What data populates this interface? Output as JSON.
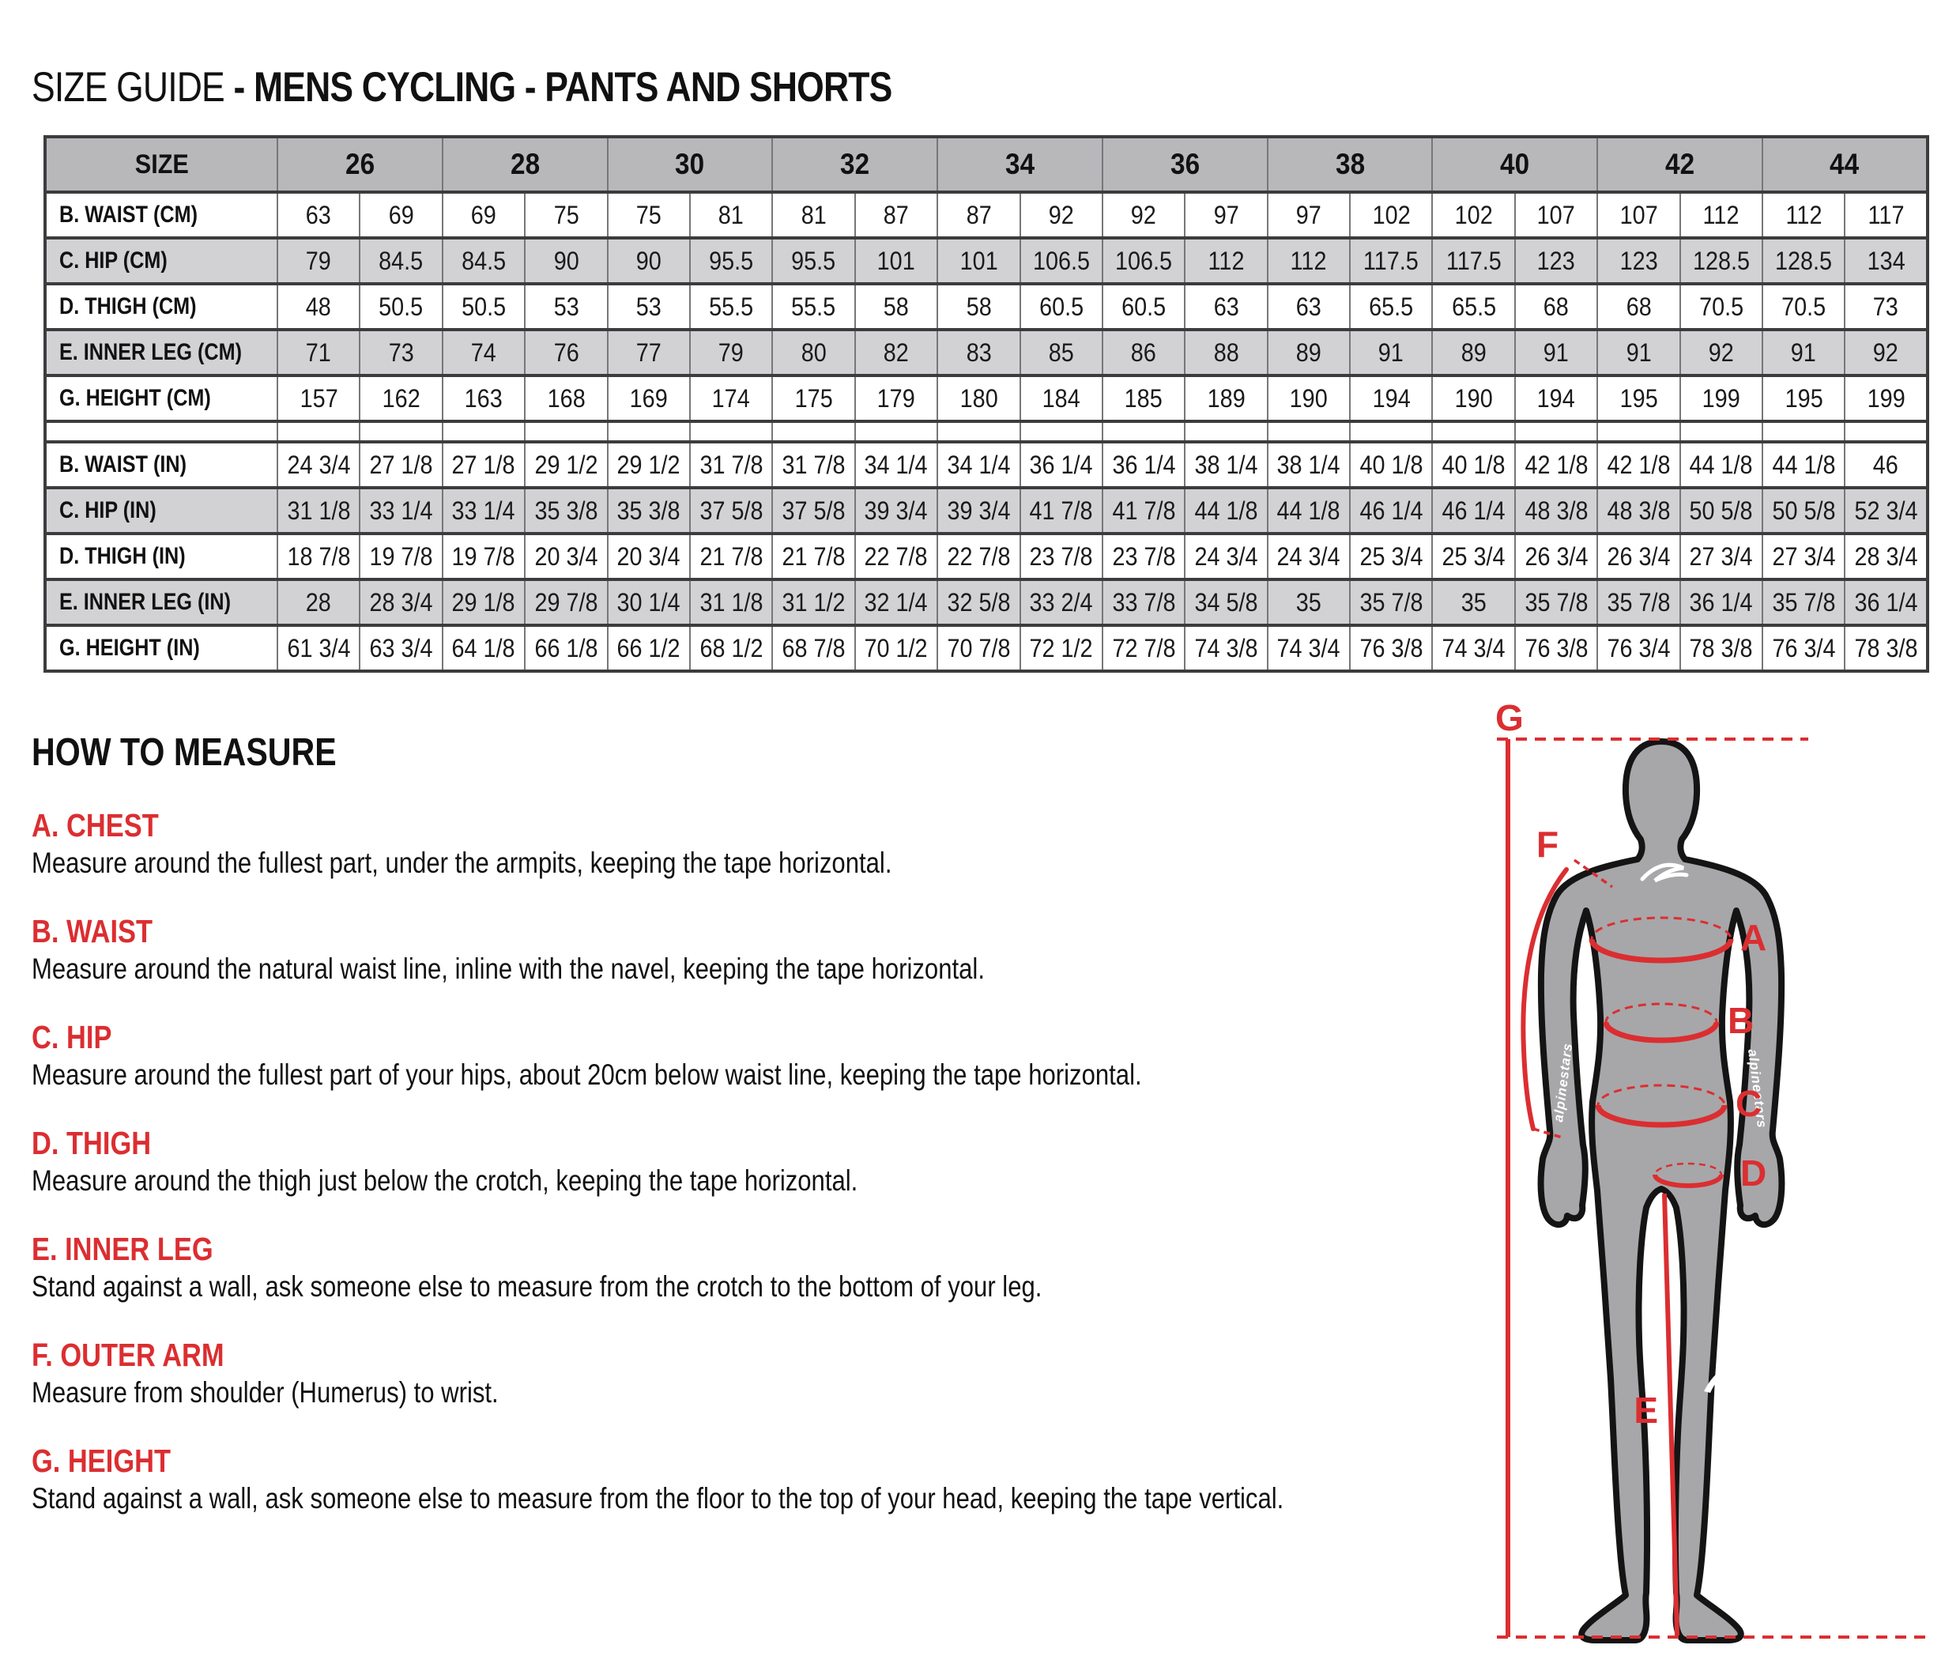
{
  "title": {
    "prefix": "SIZE GUIDE",
    "rest": "- MENS CYCLING - PANTS AND SHORTS"
  },
  "table": {
    "size_header_label": "SIZE",
    "sizes": [
      "26",
      "28",
      "30",
      "32",
      "34",
      "36",
      "38",
      "40",
      "42",
      "44"
    ],
    "cm_rows": [
      {
        "label": "B. WAIST (CM)",
        "values": [
          "63",
          "69",
          "69",
          "75",
          "75",
          "81",
          "81",
          "87",
          "87",
          "92",
          "92",
          "97",
          "97",
          "102",
          "102",
          "107",
          "107",
          "112",
          "112",
          "117"
        ]
      },
      {
        "label": "C. HIP (CM)",
        "values": [
          "79",
          "84.5",
          "84.5",
          "90",
          "90",
          "95.5",
          "95.5",
          "101",
          "101",
          "106.5",
          "106.5",
          "112",
          "112",
          "117.5",
          "117.5",
          "123",
          "123",
          "128.5",
          "128.5",
          "134"
        ]
      },
      {
        "label": "D. THIGH (CM)",
        "values": [
          "48",
          "50.5",
          "50.5",
          "53",
          "53",
          "55.5",
          "55.5",
          "58",
          "58",
          "60.5",
          "60.5",
          "63",
          "63",
          "65.5",
          "65.5",
          "68",
          "68",
          "70.5",
          "70.5",
          "73"
        ]
      },
      {
        "label": "E. INNER LEG (CM)",
        "values": [
          "71",
          "73",
          "74",
          "76",
          "77",
          "79",
          "80",
          "82",
          "83",
          "85",
          "86",
          "88",
          "89",
          "91",
          "89",
          "91",
          "91",
          "92",
          "91",
          "92"
        ]
      },
      {
        "label": "G. HEIGHT (CM)",
        "values": [
          "157",
          "162",
          "163",
          "168",
          "169",
          "174",
          "175",
          "179",
          "180",
          "184",
          "185",
          "189",
          "190",
          "194",
          "190",
          "194",
          "195",
          "199",
          "195",
          "199"
        ]
      }
    ],
    "in_rows": [
      {
        "label": "B. WAIST (IN)",
        "values": [
          "24 3/4",
          "27 1/8",
          "27 1/8",
          "29 1/2",
          "29 1/2",
          "31 7/8",
          "31 7/8",
          "34 1/4",
          "34 1/4",
          "36 1/4",
          "36 1/4",
          "38 1/4",
          "38 1/4",
          "40 1/8",
          "40 1/8",
          "42 1/8",
          "42 1/8",
          "44 1/8",
          "44 1/8",
          "46"
        ]
      },
      {
        "label": "C. HIP (IN)",
        "values": [
          "31 1/8",
          "33 1/4",
          "33 1/4",
          "35 3/8",
          "35 3/8",
          "37 5/8",
          "37 5/8",
          "39 3/4",
          "39 3/4",
          "41 7/8",
          "41 7/8",
          "44 1/8",
          "44 1/8",
          "46 1/4",
          "46 1/4",
          "48 3/8",
          "48 3/8",
          "50 5/8",
          "50 5/8",
          "52 3/4"
        ]
      },
      {
        "label": "D. THIGH (IN)",
        "values": [
          "18 7/8",
          "19 7/8",
          "19 7/8",
          "20 3/4",
          "20 3/4",
          "21 7/8",
          "21 7/8",
          "22 7/8",
          "22 7/8",
          "23 7/8",
          "23 7/8",
          "24 3/4",
          "24 3/4",
          "25 3/4",
          "25 3/4",
          "26 3/4",
          "26 3/4",
          "27 3/4",
          "27 3/4",
          "28 3/4"
        ]
      },
      {
        "label": "E. INNER LEG (IN)",
        "values": [
          "28",
          "28 3/4",
          "29 1/8",
          "29 7/8",
          "30 1/4",
          "31 1/8",
          "31 1/2",
          "32 1/4",
          "32 5/8",
          "33 2/4",
          "33 7/8",
          "34 5/8",
          "35",
          "35 7/8",
          "35",
          "35 7/8",
          "35 7/8",
          "36 1/4",
          "35 7/8",
          "36 1/4"
        ]
      },
      {
        "label": "G. HEIGHT (IN)",
        "values": [
          "61 3/4",
          "63 3/4",
          "64 1/8",
          "66 1/8",
          "66 1/2",
          "68 1/2",
          "68 7/8",
          "70 1/2",
          "70 7/8",
          "72 1/2",
          "72 7/8",
          "74 3/8",
          "74 3/4",
          "76 3/8",
          "74 3/4",
          "76 3/8",
          "76 3/4",
          "78 3/8",
          "76 3/4",
          "78 3/8"
        ]
      }
    ]
  },
  "how_to_measure": {
    "heading": "HOW TO MEASURE",
    "sections": [
      {
        "heading": "A. CHEST",
        "text": "Measure around the fullest part, under the armpits, keeping the tape horizontal."
      },
      {
        "heading": "B. WAIST",
        "text": "Measure around the natural waist line, inline with the navel, keeping the tape horizontal."
      },
      {
        "heading": "C. HIP",
        "text": "Measure around the fullest part of your hips, about 20cm below waist line, keeping the tape horizontal."
      },
      {
        "heading": "D. THIGH",
        "text": "Measure around the thigh just below the crotch, keeping the tape horizontal."
      },
      {
        "heading": "E. INNER LEG",
        "text": "Stand against a wall, ask someone else to measure from the crotch to the bottom of your leg."
      },
      {
        "heading": "F. OUTER ARM",
        "text": "Measure from shoulder (Humerus) to wrist."
      },
      {
        "heading": "G. HEIGHT",
        "text": "Stand against a wall, ask someone else to measure from the floor to the top of your head, keeping the tape vertical."
      }
    ]
  },
  "diagram": {
    "labels": {
      "a": "A",
      "b": "B",
      "c": "C",
      "d": "D",
      "e": "E",
      "f": "F",
      "g": "G"
    },
    "arm_text": "alpinestars"
  },
  "colors": {
    "accent_red": "#DB2E31",
    "table_header_gray": "#B8B8BA",
    "table_row_gray": "#D2D2D4",
    "table_border_dark": "#3C3C3E",
    "table_border_light": "#77777A",
    "body_gray": "#A7A7A9",
    "body_outline": "#141414"
  }
}
